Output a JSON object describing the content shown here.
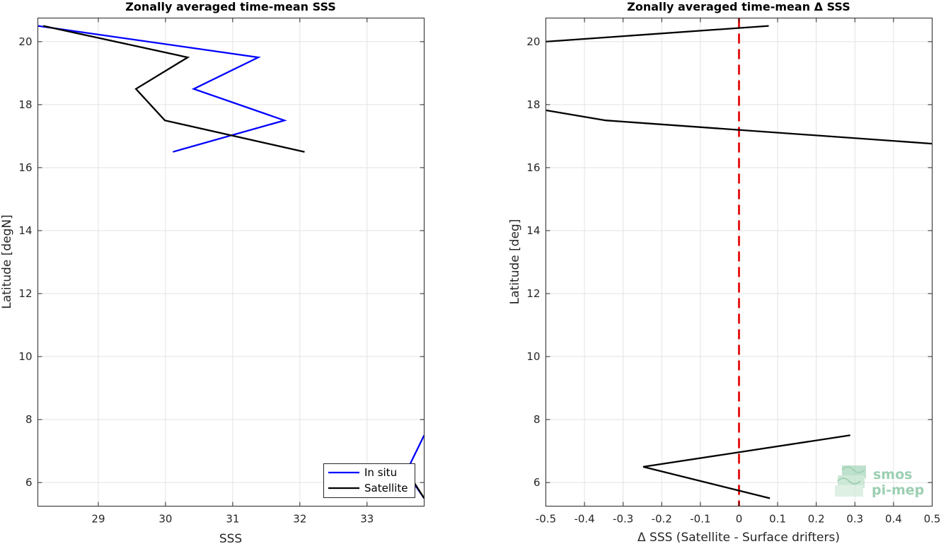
{
  "chart_data": [
    {
      "type": "line",
      "title": "Zonally averaged time-mean SSS",
      "xlabel": "SSS",
      "ylabel": "Latitude [degN]",
      "xlim": [
        28.1,
        33.85
      ],
      "ylim": [
        5.25,
        20.75
      ],
      "xticks": [
        29,
        30,
        31,
        32,
        33
      ],
      "yticks": [
        6,
        8,
        10,
        12,
        14,
        16,
        18,
        20
      ],
      "grid": true,
      "legend": "bottom-right",
      "series": [
        {
          "name": "In situ",
          "color": "#0000ff",
          "segments": [
            [
              [
                28.1,
                20.5
              ],
              [
                31.38,
                19.5
              ],
              [
                30.42,
                18.5
              ],
              [
                31.77,
                17.5
              ],
              [
                30.11,
                16.5
              ]
            ],
            [
              [
                33.85,
                7.5
              ],
              [
                33.62,
                6.5
              ],
              [
                33.72,
                5.9
              ],
              [
                33.85,
                5.5
              ]
            ]
          ]
        },
        {
          "name": "Satellite",
          "color": "#000000",
          "segments": [
            [
              [
                28.18,
                20.5
              ],
              [
                30.33,
                19.5
              ],
              [
                29.56,
                18.5
              ],
              [
                29.99,
                17.5
              ],
              [
                32.07,
                16.5
              ]
            ],
            [
              [
                33.7,
                6.0
              ],
              [
                33.85,
                5.5
              ]
            ]
          ]
        }
      ]
    },
    {
      "type": "line",
      "title": "Zonally averaged time-mean Δ SSS",
      "xlabel": "Δ SSS (Satellite - Surface drifters)",
      "ylabel": "Latitude [deg]",
      "xlim": [
        -0.5,
        0.5
      ],
      "ylim": [
        5.25,
        20.75
      ],
      "xticks": [
        -0.5,
        -0.4,
        -0.3,
        -0.2,
        -0.1,
        0,
        0.1,
        0.2,
        0.3,
        0.4,
        0.5
      ],
      "xticklabels": [
        "-0.5",
        "-0.4",
        "-0.3",
        "-0.2",
        "-0.1",
        "0",
        "0.1",
        "0.2",
        "0.3",
        "0.4",
        "0.5"
      ],
      "yticks": [
        6,
        8,
        10,
        12,
        14,
        16,
        18,
        20
      ],
      "grid": true,
      "zero_line": {
        "x": 0,
        "color": "#e41a1c",
        "style": "dashed"
      },
      "series": [
        {
          "color": "#000000",
          "segments": [
            [
              [
                -0.5,
                20.0
              ],
              [
                0.077,
                20.5
              ]
            ],
            [
              [
                -0.5,
                17.82
              ],
              [
                -0.345,
                17.5
              ],
              [
                0.5,
                16.76
              ]
            ],
            [
              [
                0.288,
                7.5
              ],
              [
                -0.248,
                6.5
              ],
              [
                0.08,
                5.5
              ]
            ]
          ]
        }
      ]
    }
  ],
  "logo": {
    "line1": "smos",
    "line2": "pi-mep",
    "color": "#9bcfb2"
  }
}
